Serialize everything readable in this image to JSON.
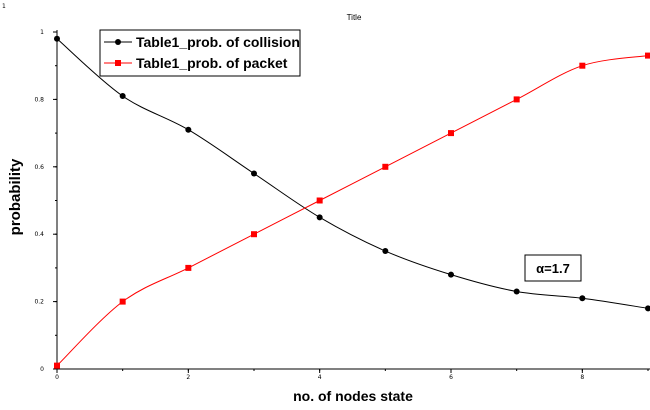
{
  "chart_data": {
    "type": "line",
    "title": "Title",
    "corner_label": "1",
    "xlabel": "no. of nodes state",
    "ylabel": "probability",
    "xlim": [
      0,
      9
    ],
    "ylim": [
      0,
      1
    ],
    "x_ticks": [
      "0",
      "2",
      "4",
      "6",
      "8"
    ],
    "y_ticks": [
      "0",
      "0.2",
      "0.4",
      "0.6",
      "0.8",
      "1"
    ],
    "grid": false,
    "legend_position": "top-left",
    "x": [
      0,
      1,
      2,
      3,
      4,
      5,
      6,
      7,
      8,
      9
    ],
    "series": [
      {
        "name": "Table1_prob. of collision",
        "color": "#000000",
        "marker": "circle",
        "values": [
          0.98,
          0.81,
          0.71,
          0.58,
          0.45,
          0.35,
          0.28,
          0.23,
          0.21,
          0.18
        ]
      },
      {
        "name": "Table1_prob. of packet",
        "color": "#ff0000",
        "marker": "square",
        "values": [
          0.01,
          0.2,
          0.3,
          0.4,
          0.5,
          0.6,
          0.7,
          0.8,
          0.9,
          0.93
        ]
      }
    ],
    "annotation": "α=1.7"
  }
}
